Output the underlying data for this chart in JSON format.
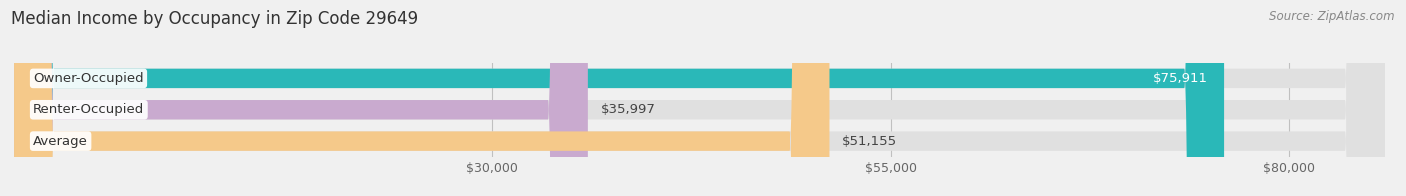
{
  "title": "Median Income by Occupancy in Zip Code 29649",
  "source": "Source: ZipAtlas.com",
  "categories": [
    "Owner-Occupied",
    "Renter-Occupied",
    "Average"
  ],
  "values": [
    75911,
    35997,
    51155
  ],
  "bar_colors": [
    "#2ab8b8",
    "#c9aacf",
    "#f5c98a"
  ],
  "bar_labels": [
    "$75,911",
    "$35,997",
    "$51,155"
  ],
  "label_colors": [
    "#ffffff",
    "#444444",
    "#444444"
  ],
  "xlim_start": 0,
  "xlim_end": 86000,
  "xticks": [
    30000,
    55000,
    80000
  ],
  "xtick_labels": [
    "$30,000",
    "$55,000",
    "$80,000"
  ],
  "background_color": "#f0f0f0",
  "bar_bg_color": "#e0e0e0",
  "title_fontsize": 12,
  "source_fontsize": 8.5,
  "label_fontsize": 9.5,
  "value_fontsize": 9.5,
  "tick_fontsize": 9,
  "figsize": [
    14.06,
    1.96
  ],
  "dpi": 100,
  "bar_height": 0.62,
  "bar_spacing": 1.0
}
